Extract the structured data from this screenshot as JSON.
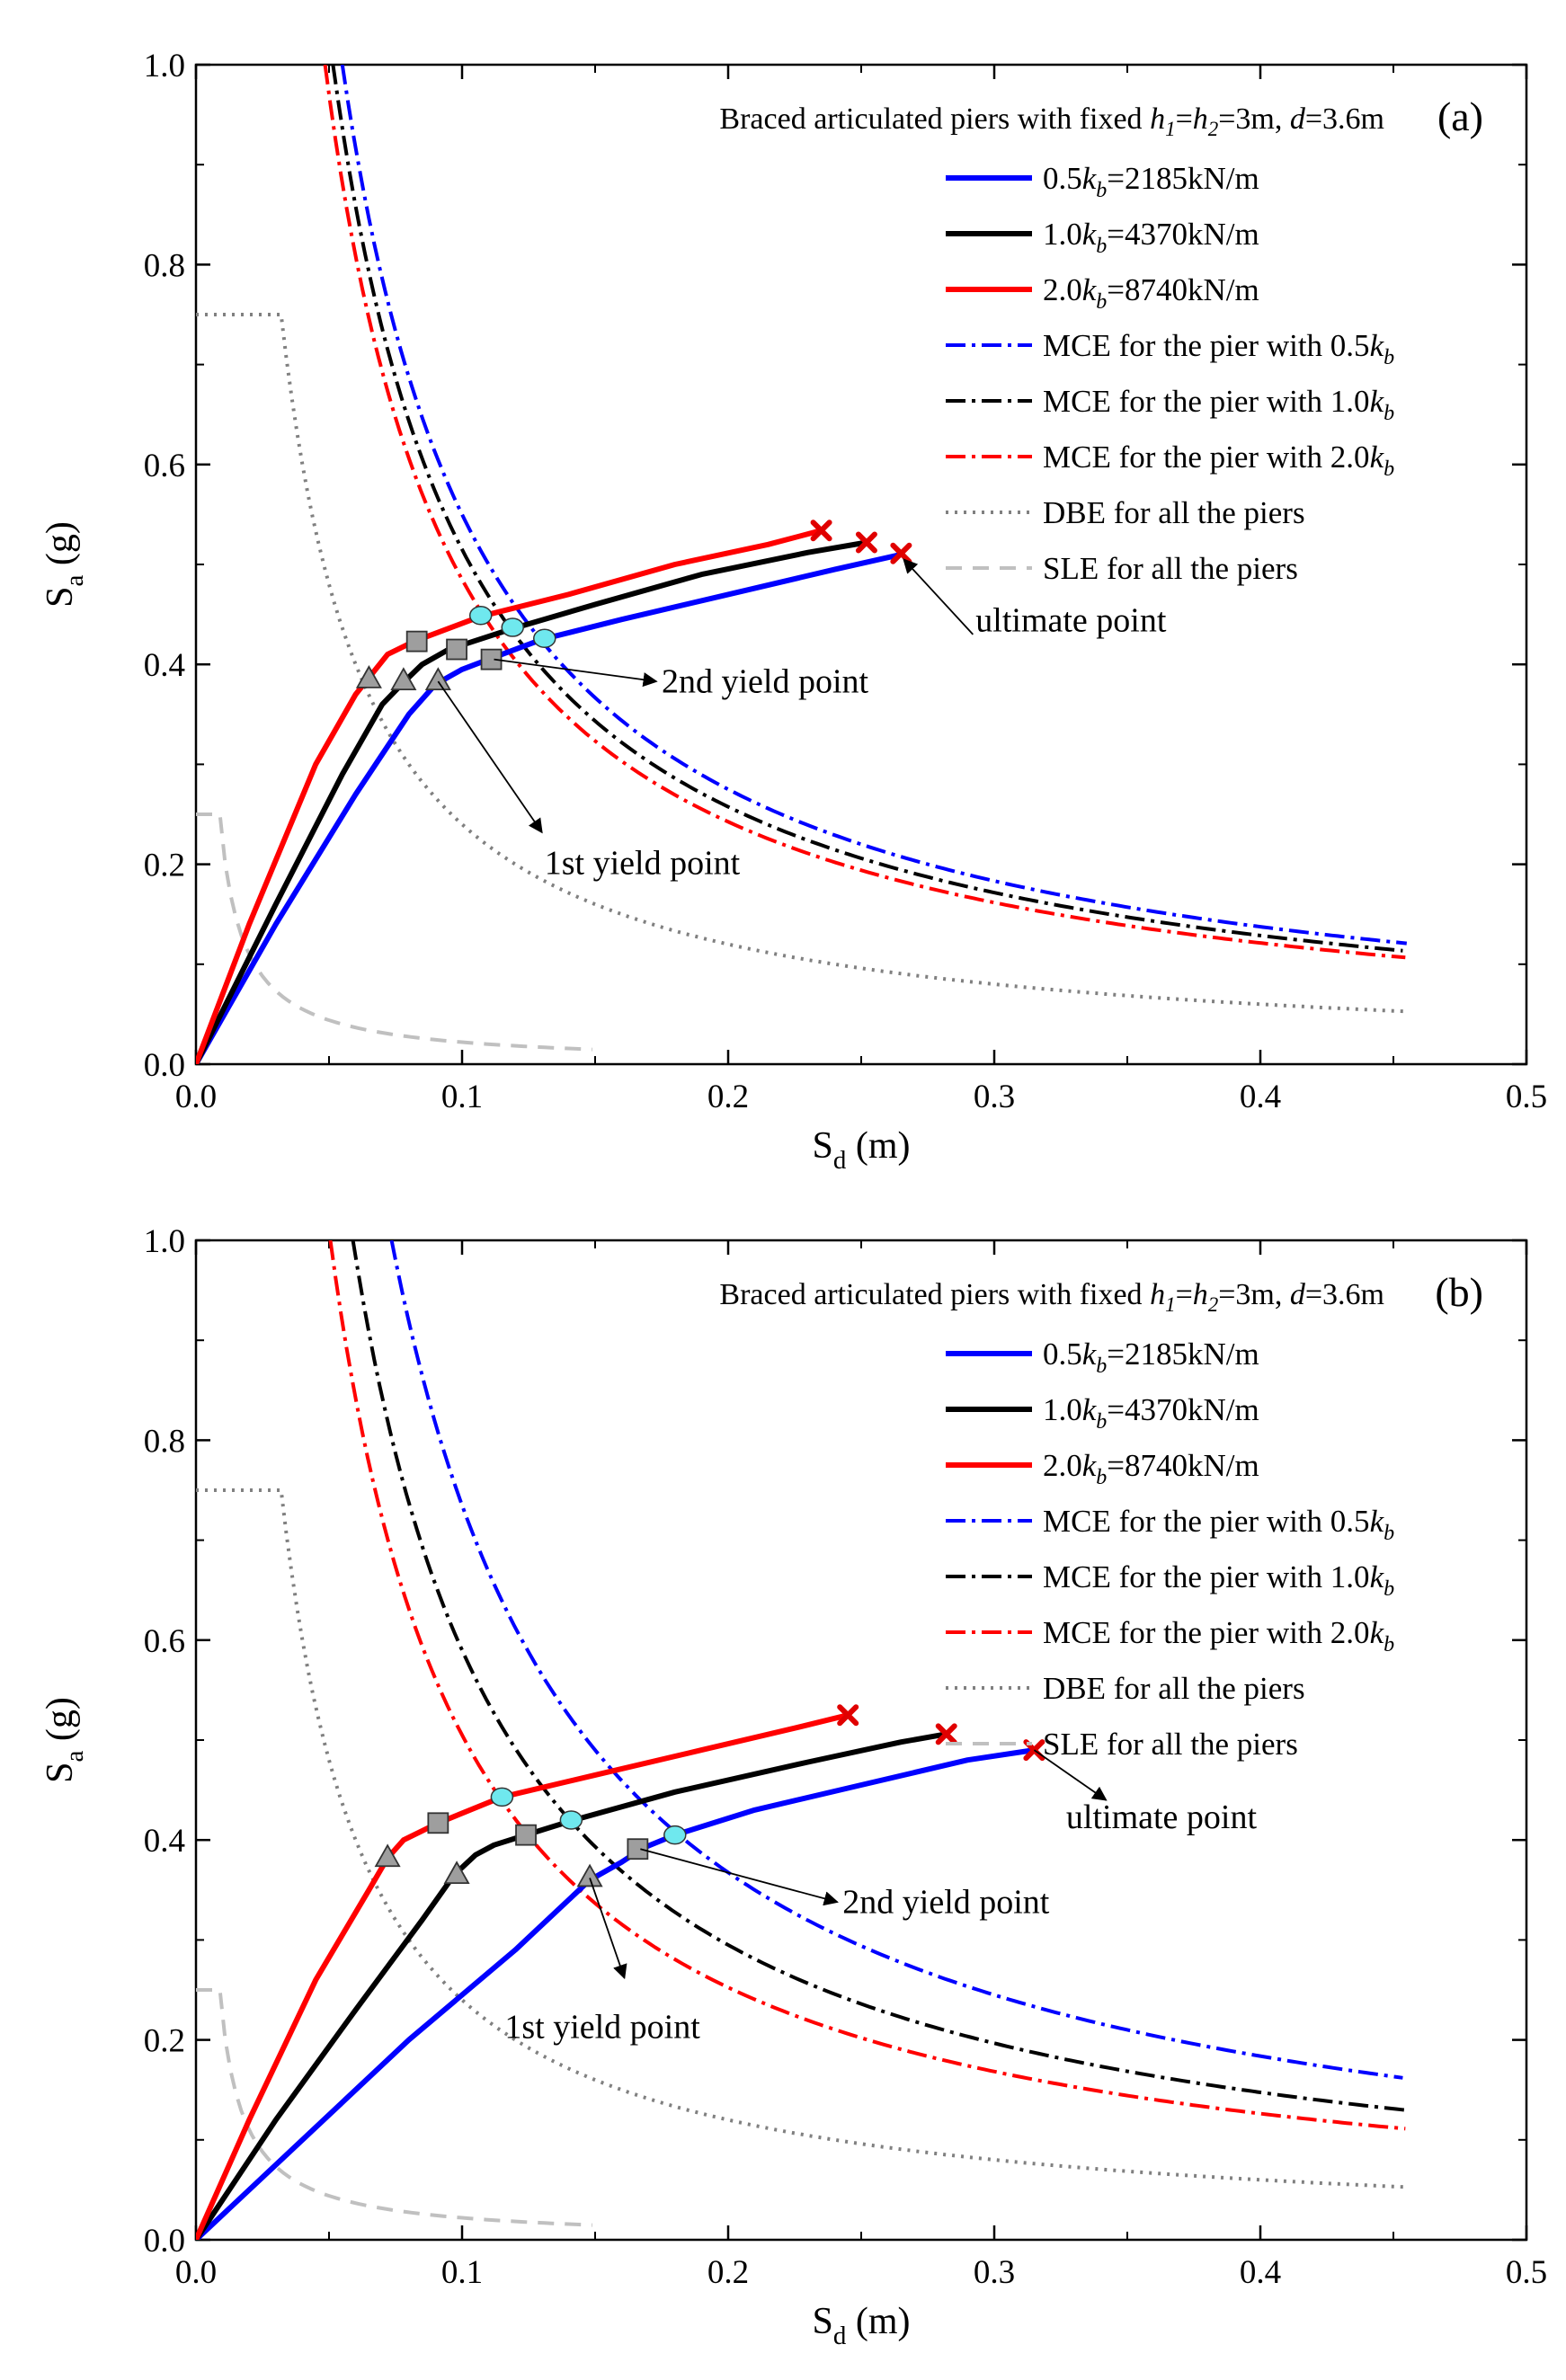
{
  "figure": {
    "panels": [
      {
        "panel_label": "(a)"
      },
      {
        "panel_label": "(b)"
      }
    ]
  },
  "chart_data": [
    {
      "type": "line",
      "panel": "(a)",
      "title": "Braced articulated piers with fixed h1=h2=3m, d=3.6m",
      "title_parts": {
        "prefix": "Braced articulated piers with fixed ",
        "h1": "h",
        "sub1": "1",
        "eq": "=",
        "h2": "h",
        "sub2": "2",
        "mid": "=3m, ",
        "d": "d",
        "suffix": "=3.6m"
      },
      "xlabel": "Sd (m)",
      "xlabel_main": "S",
      "xlabel_sub": "d",
      "xlabel_unit": " (m)",
      "ylabel": "Sa (g)",
      "ylabel_main": "S",
      "ylabel_sub": "a",
      "ylabel_unit": " (g)",
      "xlim": [
        0,
        0.5
      ],
      "ylim": [
        0,
        1.0
      ],
      "xticks": [
        "0.0",
        "0.1",
        "0.2",
        "0.3",
        "0.4",
        "0.5"
      ],
      "yticks": [
        "0.0",
        "0.2",
        "0.4",
        "0.6",
        "0.8",
        "1.0"
      ],
      "grid": false,
      "legend_position": "top-right",
      "legend": [
        {
          "text": "0.5k_b=2185kN/m",
          "pre": "0.5",
          "k": "k",
          "sub": "b",
          "post": "=2185kN/m",
          "color": "#0000ff",
          "style": "solid"
        },
        {
          "text": "1.0k_b=4370kN/m",
          "pre": "1.0",
          "k": "k",
          "sub": "b",
          "post": "=4370kN/m",
          "color": "#000000",
          "style": "solid"
        },
        {
          "text": "2.0k_b=8740kN/m",
          "pre": "2.0",
          "k": "k",
          "sub": "b",
          "post": "=8740kN/m",
          "color": "#ff0000",
          "style": "solid"
        },
        {
          "text": "MCE for the pier with 0.5k_b",
          "pre": "MCE for the pier with 0.5",
          "k": "k",
          "sub": "b",
          "post": "",
          "color": "#0000ff",
          "style": "dashdot"
        },
        {
          "text": "MCE for the pier with 1.0k_b",
          "pre": "MCE for the pier with 1.0",
          "k": "k",
          "sub": "b",
          "post": "",
          "color": "#000000",
          "style": "dashdot"
        },
        {
          "text": "MCE for the pier with 2.0k_b",
          "pre": "MCE for the pier with 2.0",
          "k": "k",
          "sub": "b",
          "post": "",
          "color": "#ff0000",
          "style": "dashdot"
        },
        {
          "text": "DBE  for all the piers",
          "pre": "DBE  for all the piers",
          "k": "",
          "sub": "",
          "post": "",
          "color": "#808080",
          "style": "dotted"
        },
        {
          "text": "SLE   for all the piers",
          "pre": "SLE   for all the piers",
          "k": "",
          "sub": "",
          "post": "",
          "color": "#c0c0c0",
          "style": "dashed"
        }
      ],
      "series": [
        {
          "name": "0.5k_b=2185kN/m",
          "kind": "capacity",
          "color": "#0000ff",
          "style": "solid",
          "x": [
            0,
            0.03,
            0.06,
            0.08,
            0.09,
            0.1,
            0.11,
            0.13,
            0.16,
            0.2,
            0.24,
            0.265
          ],
          "y": [
            0,
            0.14,
            0.27,
            0.35,
            0.38,
            0.395,
            0.405,
            0.425,
            0.445,
            0.47,
            0.495,
            0.51
          ]
        },
        {
          "name": "1.0k_b=4370kN/m",
          "kind": "capacity",
          "color": "#000000",
          "style": "solid",
          "x": [
            0,
            0.03,
            0.055,
            0.07,
            0.078,
            0.085,
            0.095,
            0.118,
            0.15,
            0.19,
            0.23,
            0.252
          ],
          "y": [
            0,
            0.16,
            0.29,
            0.36,
            0.382,
            0.4,
            0.415,
            0.435,
            0.46,
            0.49,
            0.512,
            0.522
          ]
        },
        {
          "name": "2.0k_b=8740kN/m",
          "kind": "capacity",
          "color": "#ff0000",
          "style": "solid",
          "x": [
            0,
            0.02,
            0.045,
            0.06,
            0.066,
            0.072,
            0.082,
            0.107,
            0.14,
            0.18,
            0.215,
            0.235
          ],
          "y": [
            0,
            0.14,
            0.3,
            0.37,
            0.39,
            0.41,
            0.423,
            0.448,
            0.47,
            0.5,
            0.52,
            0.534
          ]
        },
        {
          "name": "MCE for the pier with 0.5k_b",
          "kind": "demand",
          "color": "#0000ff",
          "style": "dashdot",
          "k_const": 0.055,
          "x_range": [
            0.055,
            0.455
          ]
        },
        {
          "name": "MCE for the pier with 1.0k_b",
          "kind": "demand",
          "color": "#000000",
          "style": "dashdot",
          "k_const": 0.0515,
          "x_range": [
            0.0515,
            0.455
          ]
        },
        {
          "name": "MCE for the pier with 2.0k_b",
          "kind": "demand",
          "color": "#ff0000",
          "style": "dashdot",
          "k_const": 0.0485,
          "x_range": [
            0.0485,
            0.455
          ]
        },
        {
          "name": "DBE  for all the piers",
          "kind": "spectrum",
          "color": "#808080",
          "style": "dotted",
          "plateau": 0.75,
          "corner": 0.032,
          "k_const": 0.024,
          "x_range": [
            0,
            0.455
          ]
        },
        {
          "name": "SLE   for all the piers",
          "kind": "spectrum",
          "color": "#c0c0c0",
          "style": "dashed",
          "plateau": 0.25,
          "corner": 0.009,
          "k_const": 0.0022,
          "x_range": [
            0,
            0.15
          ]
        }
      ],
      "markers": [
        {
          "shape": "triangle",
          "x": 0.065,
          "y": 0.385
        },
        {
          "shape": "triangle",
          "x": 0.078,
          "y": 0.383
        },
        {
          "shape": "triangle",
          "x": 0.091,
          "y": 0.383
        },
        {
          "shape": "square",
          "x": 0.083,
          "y": 0.423
        },
        {
          "shape": "square",
          "x": 0.098,
          "y": 0.415
        },
        {
          "shape": "square",
          "x": 0.111,
          "y": 0.405
        },
        {
          "shape": "circle",
          "x": 0.107,
          "y": 0.449
        },
        {
          "shape": "circle",
          "x": 0.119,
          "y": 0.437
        },
        {
          "shape": "circle",
          "x": 0.131,
          "y": 0.426
        },
        {
          "shape": "cross",
          "x": 0.235,
          "y": 0.534
        },
        {
          "shape": "cross",
          "x": 0.252,
          "y": 0.522
        },
        {
          "shape": "cross",
          "x": 0.265,
          "y": 0.511
        }
      ],
      "annotations": [
        {
          "text": "ultimate point",
          "arrow_from": [
            0.292,
            0.43
          ],
          "arrow_to": [
            0.266,
            0.505
          ],
          "text_at": [
            0.293,
            0.433
          ],
          "anchor": "start"
        },
        {
          "text": "2nd yield point",
          "arrow_from": [
            0.112,
            0.405
          ],
          "arrow_to": [
            0.173,
            0.383
          ],
          "text_at": [
            0.175,
            0.372
          ],
          "anchor": "start"
        },
        {
          "text": "1st yield point",
          "arrow_from": [
            0.091,
            0.383
          ],
          "arrow_to": [
            0.13,
            0.232
          ],
          "text_at": [
            0.131,
            0.19
          ],
          "anchor": "start"
        }
      ]
    },
    {
      "type": "line",
      "panel": "(b)",
      "title": "Braced articulated piers with fixed h1=h2=3m, d=3.6m",
      "title_parts": {
        "prefix": "Braced articulated piers with fixed ",
        "h1": "h",
        "sub1": "1",
        "eq": "=",
        "h2": "h",
        "sub2": "2",
        "mid": "=3m, ",
        "d": "d",
        "suffix": "=3.6m"
      },
      "xlabel": "Sd (m)",
      "xlabel_main": "S",
      "xlabel_sub": "d",
      "xlabel_unit": " (m)",
      "ylabel": "Sa (g)",
      "ylabel_main": "S",
      "ylabel_sub": "a",
      "ylabel_unit": " (g)",
      "xlim": [
        0,
        0.5
      ],
      "ylim": [
        0,
        1.0
      ],
      "xticks": [
        "0.0",
        "0.1",
        "0.2",
        "0.3",
        "0.4",
        "0.5"
      ],
      "yticks": [
        "0.0",
        "0.2",
        "0.4",
        "0.6",
        "0.8",
        "1.0"
      ],
      "grid": false,
      "legend_position": "top-right",
      "legend": [
        {
          "text": "0.5k_b=2185kN/m",
          "pre": "0.5",
          "k": "k",
          "sub": "b",
          "post": "=2185kN/m",
          "color": "#0000ff",
          "style": "solid"
        },
        {
          "text": "1.0k_b=4370kN/m",
          "pre": "1.0",
          "k": "k",
          "sub": "b",
          "post": "=4370kN/m",
          "color": "#000000",
          "style": "solid"
        },
        {
          "text": "2.0k_b=8740kN/m",
          "pre": "2.0",
          "k": "k",
          "sub": "b",
          "post": "=8740kN/m",
          "color": "#ff0000",
          "style": "solid"
        },
        {
          "text": "MCE for the pier with 0.5k_b",
          "pre": "MCE for the pier with 0.5",
          "k": "k",
          "sub": "b",
          "post": "",
          "color": "#0000ff",
          "style": "dashdot"
        },
        {
          "text": "MCE for the pier with 1.0k_b",
          "pre": "MCE for the pier with 1.0",
          "k": "k",
          "sub": "b",
          "post": "",
          "color": "#000000",
          "style": "dashdot"
        },
        {
          "text": "MCE for the pier with 2.0k_b",
          "pre": "MCE for the pier with 2.0",
          "k": "k",
          "sub": "b",
          "post": "",
          "color": "#ff0000",
          "style": "dashdot"
        },
        {
          "text": "DBE  for all the piers",
          "pre": "DBE  for all the piers",
          "k": "",
          "sub": "",
          "post": "",
          "color": "#808080",
          "style": "dotted"
        },
        {
          "text": "SLE   for all the piers",
          "pre": "SLE   for all the piers",
          "k": "",
          "sub": "",
          "post": "",
          "color": "#c0c0c0",
          "style": "dashed"
        }
      ],
      "series": [
        {
          "name": "0.5k_b=2185kN/m",
          "kind": "capacity",
          "color": "#0000ff",
          "style": "solid",
          "x": [
            0,
            0.04,
            0.08,
            0.12,
            0.148,
            0.16,
            0.168,
            0.18,
            0.21,
            0.25,
            0.29,
            0.315
          ],
          "y": [
            0,
            0.1,
            0.2,
            0.29,
            0.36,
            0.378,
            0.392,
            0.405,
            0.43,
            0.455,
            0.48,
            0.49
          ]
        },
        {
          "name": "1.0k_b=4370kN/m",
          "kind": "capacity",
          "color": "#000000",
          "style": "solid",
          "x": [
            0,
            0.03,
            0.06,
            0.085,
            0.097,
            0.105,
            0.112,
            0.124,
            0.142,
            0.18,
            0.23,
            0.265,
            0.282
          ],
          "y": [
            0,
            0.12,
            0.23,
            0.32,
            0.365,
            0.385,
            0.395,
            0.405,
            0.42,
            0.448,
            0.478,
            0.498,
            0.506
          ]
        },
        {
          "name": "2.0k_b=8740kN/m",
          "kind": "capacity",
          "color": "#ff0000",
          "style": "solid",
          "x": [
            0,
            0.02,
            0.045,
            0.065,
            0.072,
            0.078,
            0.091,
            0.115,
            0.15,
            0.19,
            0.225,
            0.245
          ],
          "y": [
            0,
            0.12,
            0.26,
            0.35,
            0.382,
            0.4,
            0.417,
            0.443,
            0.465,
            0.49,
            0.512,
            0.525
          ]
        },
        {
          "name": "MCE for the pier with 0.5k_b",
          "kind": "demand",
          "color": "#0000ff",
          "style": "dashdot",
          "k_const": 0.0735,
          "x_range": [
            0.0735,
            0.455
          ]
        },
        {
          "name": "MCE for the pier with 1.0k_b",
          "kind": "demand",
          "color": "#000000",
          "style": "dashdot",
          "k_const": 0.059,
          "x_range": [
            0.059,
            0.455
          ]
        },
        {
          "name": "MCE for the pier with 2.0k_b",
          "kind": "demand",
          "color": "#ff0000",
          "style": "dashdot",
          "k_const": 0.0505,
          "x_range": [
            0.0505,
            0.455
          ]
        },
        {
          "name": "DBE  for all the piers",
          "kind": "spectrum",
          "color": "#808080",
          "style": "dotted",
          "plateau": 0.75,
          "corner": 0.032,
          "k_const": 0.024,
          "x_range": [
            0,
            0.455
          ]
        },
        {
          "name": "SLE   for all the piers",
          "kind": "spectrum",
          "color": "#c0c0c0",
          "style": "dashed",
          "plateau": 0.25,
          "corner": 0.009,
          "k_const": 0.0022,
          "x_range": [
            0,
            0.15
          ]
        }
      ],
      "markers": [
        {
          "shape": "triangle",
          "x": 0.072,
          "y": 0.382
        },
        {
          "shape": "triangle",
          "x": 0.098,
          "y": 0.365
        },
        {
          "shape": "triangle",
          "x": 0.148,
          "y": 0.362
        },
        {
          "shape": "square",
          "x": 0.091,
          "y": 0.417
        },
        {
          "shape": "square",
          "x": 0.124,
          "y": 0.405
        },
        {
          "shape": "square",
          "x": 0.166,
          "y": 0.391
        },
        {
          "shape": "circle",
          "x": 0.115,
          "y": 0.443
        },
        {
          "shape": "circle",
          "x": 0.141,
          "y": 0.42
        },
        {
          "shape": "circle",
          "x": 0.18,
          "y": 0.405
        },
        {
          "shape": "cross",
          "x": 0.245,
          "y": 0.525
        },
        {
          "shape": "cross",
          "x": 0.282,
          "y": 0.506
        },
        {
          "shape": "cross",
          "x": 0.315,
          "y": 0.49
        }
      ],
      "annotations": [
        {
          "text": "ultimate point",
          "arrow_from": [
            0.315,
            0.49
          ],
          "arrow_to": [
            0.342,
            0.44
          ],
          "text_at": [
            0.327,
            0.412
          ],
          "anchor": "start"
        },
        {
          "text": "2nd  yield point",
          "arrow_from": [
            0.167,
            0.391
          ],
          "arrow_to": [
            0.241,
            0.338
          ],
          "text_at": [
            0.243,
            0.327
          ],
          "anchor": "start"
        },
        {
          "text": "1st yield point",
          "arrow_from": [
            0.148,
            0.362
          ],
          "arrow_to": [
            0.161,
            0.262
          ],
          "text_at": [
            0.116,
            0.202
          ],
          "anchor": "start"
        }
      ]
    }
  ]
}
